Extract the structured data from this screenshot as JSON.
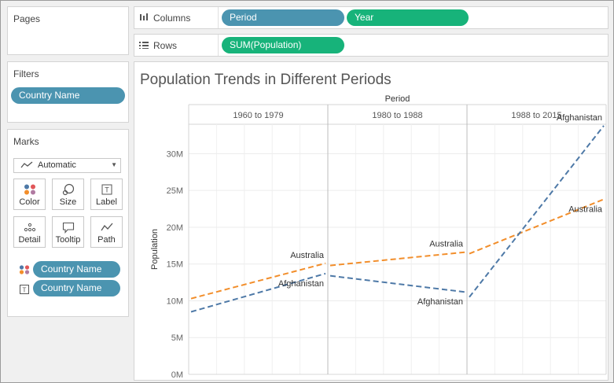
{
  "shelves": {
    "pages_title": "Pages",
    "filters_title": "Filters",
    "filter_pill": "Country Name",
    "columns_label": "Columns",
    "columns_pills": [
      "Period",
      "Year"
    ],
    "rows_label": "Rows",
    "rows_pills": [
      "SUM(Population)"
    ]
  },
  "marks": {
    "title": "Marks",
    "mark_type": "Automatic",
    "buttons": [
      "Color",
      "Size",
      "Label",
      "Detail",
      "Tooltip",
      "Path"
    ],
    "encodings": [
      {
        "type": "color",
        "field": "Country Name"
      },
      {
        "type": "label",
        "field": "Country Name"
      }
    ]
  },
  "colors": {
    "pill_blue": "#4b94b0",
    "pill_green": "#17b37a",
    "afghanistan": "#4e79a7",
    "australia": "#f28e2b"
  },
  "chart_data": {
    "type": "line",
    "title": "Population Trends in Different Periods",
    "column_header": "Period",
    "panels": [
      "1960 to 1979",
      "1980 to 1988",
      "1988 to 2015"
    ],
    "ylabel": "Population",
    "yticks": [
      "0M",
      "5M",
      "10M",
      "15M",
      "20M",
      "25M",
      "30M"
    ],
    "ylim": [
      0,
      34
    ],
    "line_style": "dashed",
    "grid": true,
    "series": [
      {
        "name": "Australia",
        "label": "Australia",
        "color": "#f28e2b",
        "segments": [
          {
            "panel": 0,
            "start": 10.3,
            "end": 15.1
          },
          {
            "panel": 1,
            "start": 14.8,
            "end": 16.6
          },
          {
            "panel": 2,
            "start": 16.4,
            "end": 23.8
          }
        ]
      },
      {
        "name": "Afghanistan",
        "label": "Afghanistan",
        "color": "#4e79a7",
        "segments": [
          {
            "panel": 0,
            "start": 8.5,
            "end": 13.7
          },
          {
            "panel": 1,
            "start": 13.4,
            "end": 11.2
          },
          {
            "panel": 2,
            "start": 10.5,
            "end": 33.8
          }
        ]
      }
    ]
  }
}
